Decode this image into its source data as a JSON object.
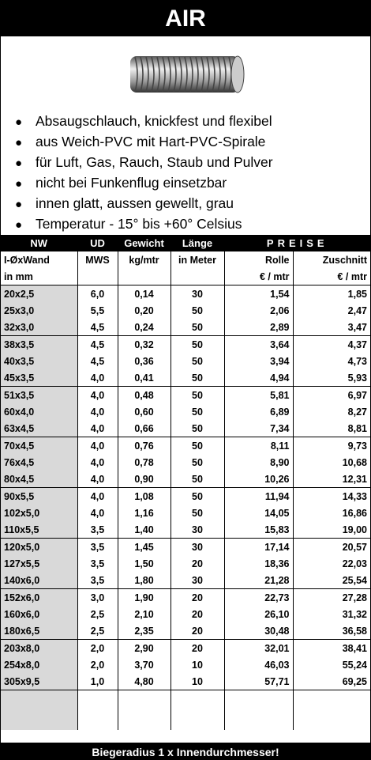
{
  "header": {
    "title": "AIR"
  },
  "bullets": [
    "Absaugschlauch, knickfest und  flexibel",
    "aus Weich-PVC mit Hart-PVC-Spirale",
    "für Luft, Gas, Rauch, Staub  und Pulver",
    "nicht bei Funkenflug einsetzbar",
    "innen glatt, aussen gewellt, grau",
    "Temperatur  - 15° bis +60° Celsius"
  ],
  "table": {
    "head": [
      "NW",
      "UD",
      "Gewicht",
      "Länge",
      "PREISE"
    ],
    "subhead": [
      "I-ØxWand",
      "MWS",
      "kg/mtr",
      "in Meter",
      "Rolle",
      "Zuschnitt"
    ],
    "units": {
      "nw": "in mm",
      "rolle": "€ / mtr",
      "zuschnitt": "€ / mtr"
    },
    "rows": [
      [
        "20x2,5",
        "6,0",
        "0,14",
        "30",
        "1,54",
        "1,85"
      ],
      [
        "25x3,0",
        "5,5",
        "0,20",
        "50",
        "2,06",
        "2,47"
      ],
      [
        "32x3,0",
        "4,5",
        "0,24",
        "50",
        "2,89",
        "3,47"
      ],
      [
        "38x3,5",
        "4,5",
        "0,32",
        "50",
        "3,64",
        "4,37"
      ],
      [
        "40x3,5",
        "4,5",
        "0,36",
        "50",
        "3,94",
        "4,73"
      ],
      [
        "45x3,5",
        "4,0",
        "0,41",
        "50",
        "4,94",
        "5,93"
      ],
      [
        "51x3,5",
        "4,0",
        "0,48",
        "50",
        "5,81",
        "6,97"
      ],
      [
        "60x4,0",
        "4,0",
        "0,60",
        "50",
        "6,89",
        "8,27"
      ],
      [
        "63x4,5",
        "4,0",
        "0,66",
        "50",
        "7,34",
        "8,81"
      ],
      [
        "70x4,5",
        "4,0",
        "0,76",
        "50",
        "8,11",
        "9,73"
      ],
      [
        "76x4,5",
        "4,0",
        "0,78",
        "50",
        "8,90",
        "10,68"
      ],
      [
        "80x4,5",
        "4,0",
        "0,90",
        "50",
        "10,26",
        "12,31"
      ],
      [
        "90x5,5",
        "4,0",
        "1,08",
        "50",
        "11,94",
        "14,33"
      ],
      [
        "102x5,0",
        "4,0",
        "1,16",
        "50",
        "14,05",
        "16,86"
      ],
      [
        "110x5,5",
        "3,5",
        "1,40",
        "30",
        "15,83",
        "19,00"
      ],
      [
        "120x5,0",
        "3,5",
        "1,45",
        "30",
        "17,14",
        "20,57"
      ],
      [
        "127x5,5",
        "3,5",
        "1,50",
        "20",
        "18,36",
        "22,03"
      ],
      [
        "140x6,0",
        "3,5",
        "1,80",
        "30",
        "21,28",
        "25,54"
      ],
      [
        "152x6,0",
        "3,0",
        "1,90",
        "20",
        "22,73",
        "27,28"
      ],
      [
        "160x6,0",
        "2,5",
        "2,10",
        "20",
        "26,10",
        "31,32"
      ],
      [
        "180x6,5",
        "2,5",
        "2,35",
        "20",
        "30,48",
        "36,58"
      ],
      [
        "203x8,0",
        "2,0",
        "2,90",
        "20",
        "32,01",
        "38,41"
      ],
      [
        "254x8,0",
        "2,0",
        "3,70",
        "10",
        "46,03",
        "55,24"
      ],
      [
        "305x9,5",
        "1,0",
        "4,80",
        "10",
        "57,71",
        "69,25"
      ]
    ]
  },
  "footer": "Biegeradius 1 x Innendurchmesser!"
}
